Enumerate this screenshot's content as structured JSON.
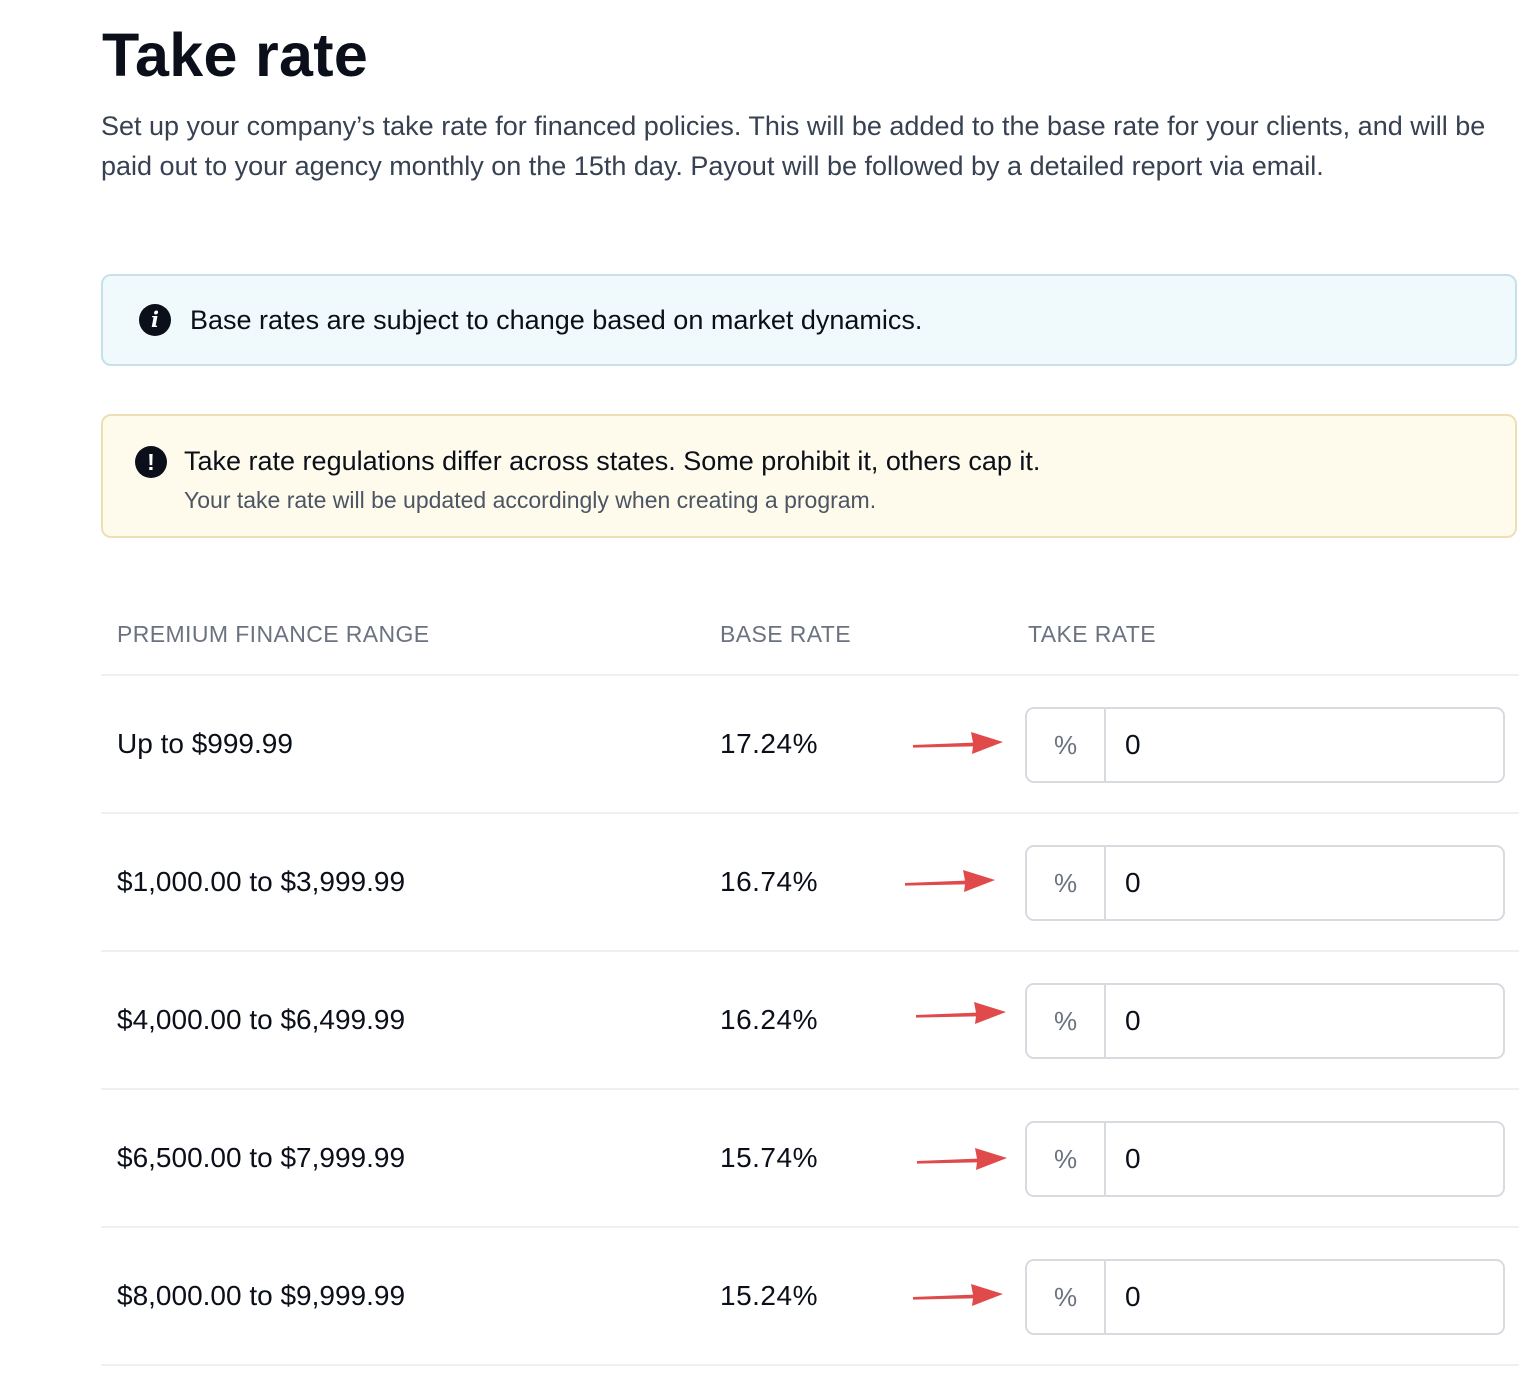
{
  "header": {
    "title": "Take rate",
    "description": "Set up your company’s take rate for financed policies. This will be added to the base rate for your clients, and will be paid out to your agency monthly on the 15th day. Payout will be followed by a detailed report via email."
  },
  "alerts": {
    "info": {
      "icon": "info-icon",
      "text": "Base rates are subject to change based on market dynamics."
    },
    "warning": {
      "icon": "exclamation-icon",
      "title": "Take rate regulations differ across states. Some prohibit it, others cap it.",
      "subtitle": "Your take rate will be updated accordingly when creating a program."
    }
  },
  "table": {
    "headers": {
      "range": "PREMIUM FINANCE RANGE",
      "base_rate": "BASE RATE",
      "take_rate": "TAKE RATE"
    },
    "rows": [
      {
        "range": "Up to $999.99",
        "base_rate": "17.24%",
        "unit": "%",
        "take_rate": "0"
      },
      {
        "range": "$1,000.00 to $3,999.99",
        "base_rate": "16.74%",
        "unit": "%",
        "take_rate": "0"
      },
      {
        "range": "$4,000.00 to $6,499.99",
        "base_rate": "16.24%",
        "unit": "%",
        "take_rate": "0"
      },
      {
        "range": "$6,500.00 to $7,999.99",
        "base_rate": "15.74%",
        "unit": "%",
        "take_rate": "0"
      },
      {
        "range": "$8,000.00 to $9,999.99",
        "base_rate": "15.24%",
        "unit": "%",
        "take_rate": "0"
      }
    ]
  },
  "colors": {
    "annotation_arrow": "#e04a4a",
    "info_background": "#f0f9fc",
    "warning_background": "#fefaec"
  }
}
